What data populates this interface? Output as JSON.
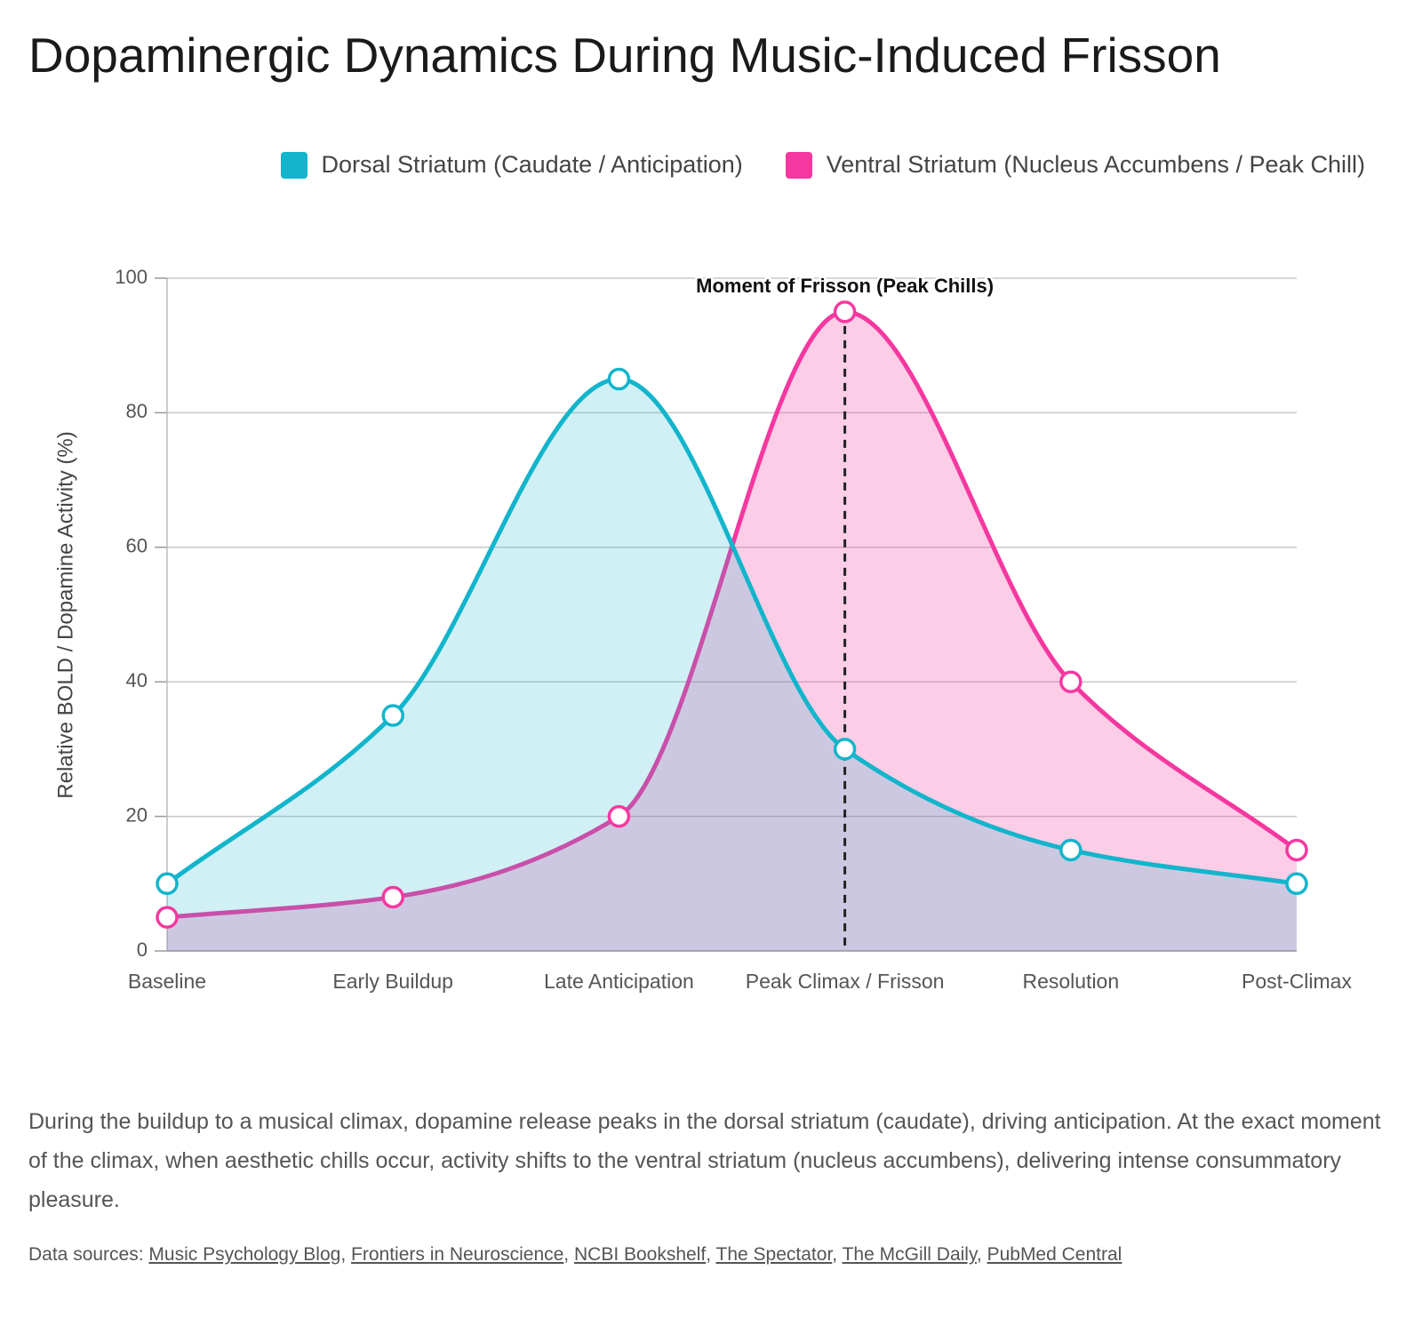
{
  "chart_data": {
    "type": "area",
    "title": "Dopaminergic Dynamics During Music-Induced Frisson",
    "categories": [
      "Baseline",
      "Early Buildup",
      "Late Anticipation",
      "Peak Climax / Frisson",
      "Resolution",
      "Post-Climax"
    ],
    "series": [
      {
        "name": "Dorsal Striatum (Caudate / Anticipation)",
        "color": "#12b5cb",
        "values": [
          10,
          35,
          85,
          30,
          15,
          10
        ]
      },
      {
        "name": "Ventral Striatum (Nucleus Accumbens / Peak Chill)",
        "color": "#f538a0",
        "values": [
          5,
          8,
          20,
          95,
          40,
          15
        ]
      }
    ],
    "y_label": "Relative BOLD / Dopamine Activity (%)",
    "ylim": [
      0,
      100
    ],
    "yticks": [
      0,
      20,
      40,
      60,
      80,
      100
    ],
    "grid": true,
    "annotations": [
      {
        "x": "Peak Climax / Frisson",
        "label": "Moment of Frisson (Peak Chills)"
      }
    ]
  },
  "description": "During the buildup to a musical climax, dopamine release peaks in the dorsal striatum (caudate), driving anticipation. At the exact moment of the climax, when aesthetic chills occur, activity shifts to the ventral striatum (nucleus accumbens), delivering intense consummatory pleasure.",
  "sources": {
    "label": "Data sources:",
    "separator": ",",
    "items": [
      "Music Psychology Blog",
      "Frontiers in Neuroscience",
      "NCBI Bookshelf",
      "The Spectator",
      "The McGill Daily",
      "PubMed Central"
    ]
  }
}
